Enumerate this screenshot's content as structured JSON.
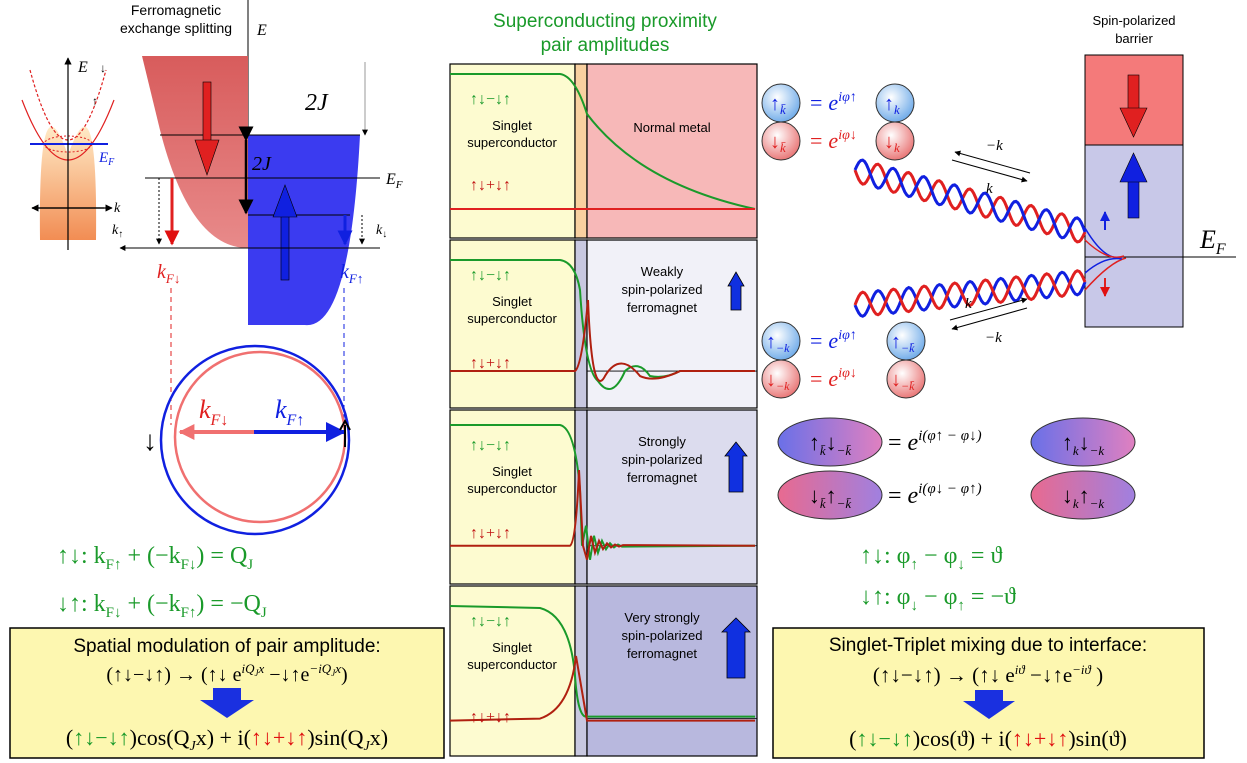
{
  "left": {
    "title_line1": "Ferromagnetic",
    "title_line2": "exchange splitting",
    "axis_E": "E",
    "axis_k": "k",
    "label_EF": "E",
    "label_EF_sub": "F",
    "label_2J_top": "2J",
    "label_2J_mid": "2J",
    "label_k_up": "k",
    "label_k_up_sub": "↑",
    "label_k_down": "k",
    "label_k_down_sub": "↓",
    "kF_down": "k",
    "kF_down_sub": "F↓",
    "kF_up": "k",
    "kF_up_sub": "F↑",
    "inset_spin_down": "↓",
    "inset_spin_up": "↑",
    "circle_kFdown": "k",
    "circle_kFdown_sub": "F↓",
    "circle_kFup": "k",
    "circle_kFup_sub": "F↑",
    "circle_side_arrow": "↓",
    "eq1": "↑↓: k",
    "eq1_sub1": "F↑",
    "eq1_mid": " + (−k",
    "eq1_sub2": "F↓",
    "eq1_end": ") =   Q",
    "eq1_sub3": "J",
    "eq2": "↓↑: k",
    "eq2_sub1": "F↓",
    "eq2_mid": " + (−k",
    "eq2_sub2": "F↑",
    "eq2_end": ") = −Q",
    "eq2_sub3": "J",
    "box_title": "Spatial modulation of pair amplitude:",
    "box_line1": "(↑↓−↓↑) → (↑↓ e",
    "box_line1_sup1": "iQ",
    "box_line1_sup1b": "J",
    "box_line1_sup1c": "x",
    "box_line1_mid": " −↓↑e",
    "box_line1_sup2": "−iQ",
    "box_line1_sup2b": "J",
    "box_line1_sup2c": "x",
    "box_line1_end": ")",
    "box_line2_a": "(",
    "box_line2_singlet": "↑↓−↓↑",
    "box_line2_b": ")cos(Q",
    "box_line2_sub": "J",
    "box_line2_c": "x) + i(",
    "box_line2_triplet": "↑↓+↓↑",
    "box_line2_d": ")sin(Q",
    "box_line2_sub2": "J",
    "box_line2_e": "x)"
  },
  "middle": {
    "title_line1": "Superconducting proximity",
    "title_line2": "pair amplitudes",
    "panels": [
      {
        "singlet_label": "↑↓−↓↑",
        "sc_line1": "Singlet",
        "sc_line2": "superconductor",
        "triplet_label": "↑↓+↓↑",
        "region_line1": "Normal metal",
        "region_line2": "",
        "region_line3": ""
      },
      {
        "singlet_label": "↑↓−↓↑",
        "sc_line1": "Singlet",
        "sc_line2": "superconductor",
        "triplet_label": "↑↓+↓↑",
        "region_line1": "Weakly",
        "region_line2": "spin-polarized",
        "region_line3": "ferromagnet"
      },
      {
        "singlet_label": "↑↓−↓↑",
        "sc_line1": "Singlet",
        "sc_line2": "superconductor",
        "triplet_label": "↑↓+↓↑",
        "region_line1": "Strongly",
        "region_line2": "spin-polarized",
        "region_line3": "ferromagnet"
      },
      {
        "singlet_label": "↑↓−↓↑",
        "sc_line1": "Singlet",
        "sc_line2": "superconductor",
        "triplet_label": "↑↓+↓↑",
        "region_line1": "Very strongly",
        "region_line2": "spin-polarized",
        "region_line3": "ferromagnet"
      }
    ]
  },
  "right": {
    "barrier_line1": "Spin-polarized",
    "barrier_line2": "barrier",
    "EF": "E",
    "EF_sub": "F",
    "wave_label_kbar": "k",
    "wave_label_minus_kbar": "−k",
    "wave_label_k": "k",
    "wave_label_minus_k": "−k",
    "phase_up": "e",
    "phase_up_sup": "iφ↑",
    "phase_down": "e",
    "phase_down_sup": "iφ↓",
    "eq_equal": "=",
    "pair1_left": "↑",
    "pair1_left_sub": "k̄",
    "pair1_left2": "↓",
    "pair1_left2_sub": "−k̄",
    "pair1_phase": "e",
    "pair1_phase_sup": "i(φ↑ − φ↓)",
    "pair1_right": "↑",
    "pair1_right_sub": "k",
    "pair1_right2": "↓",
    "pair1_right2_sub": "−k",
    "pair2_left": "↓",
    "pair2_left_sub": "k̄",
    "pair2_left2": "↑",
    "pair2_left2_sub": "−k̄",
    "pair2_phase": "e",
    "pair2_phase_sup": "i(φ↓ − φ↑)",
    "pair2_right": "↓",
    "pair2_right_sub": "k",
    "pair2_right2": "↑",
    "pair2_right2_sub": "−k",
    "phi_eq1_a": "↑↓: φ",
    "phi_eq1_s1": "↑",
    "phi_eq1_b": " − φ",
    "phi_eq1_s2": "↓",
    "phi_eq1_c": " =   ϑ",
    "phi_eq2_a": "↓↑: φ",
    "phi_eq2_s1": "↓",
    "phi_eq2_b": " − φ",
    "phi_eq2_s2": "↑",
    "phi_eq2_c": " = −ϑ",
    "box_title": "Singlet-Triplet mixing due to interface:",
    "box_line1": "(↑↓−↓↑) → (↑↓ e",
    "box_line1_sup1": "iϑ",
    "box_line1_mid": " −↓↑e",
    "box_line1_sup2": "−iϑ",
    "box_line1_end": " )",
    "box_line2_a": "(",
    "box_line2_singlet": "↑↓−↓↑",
    "box_line2_b": ")cos(ϑ) + i(",
    "box_line2_triplet": "↑↓+↓↑",
    "box_line2_c": ")sin(ϑ)",
    "ket_k": "k",
    "ket_kbar": "k̄",
    "ket_minus_k": "−k",
    "ket_minus_kbar": "−k̄"
  },
  "colors": {
    "green": "#1a9a2a",
    "red": "#e01010",
    "blue": "#1020e0",
    "box_fill": "#fdf7b0",
    "sc_fill": "#fdfbd0"
  }
}
